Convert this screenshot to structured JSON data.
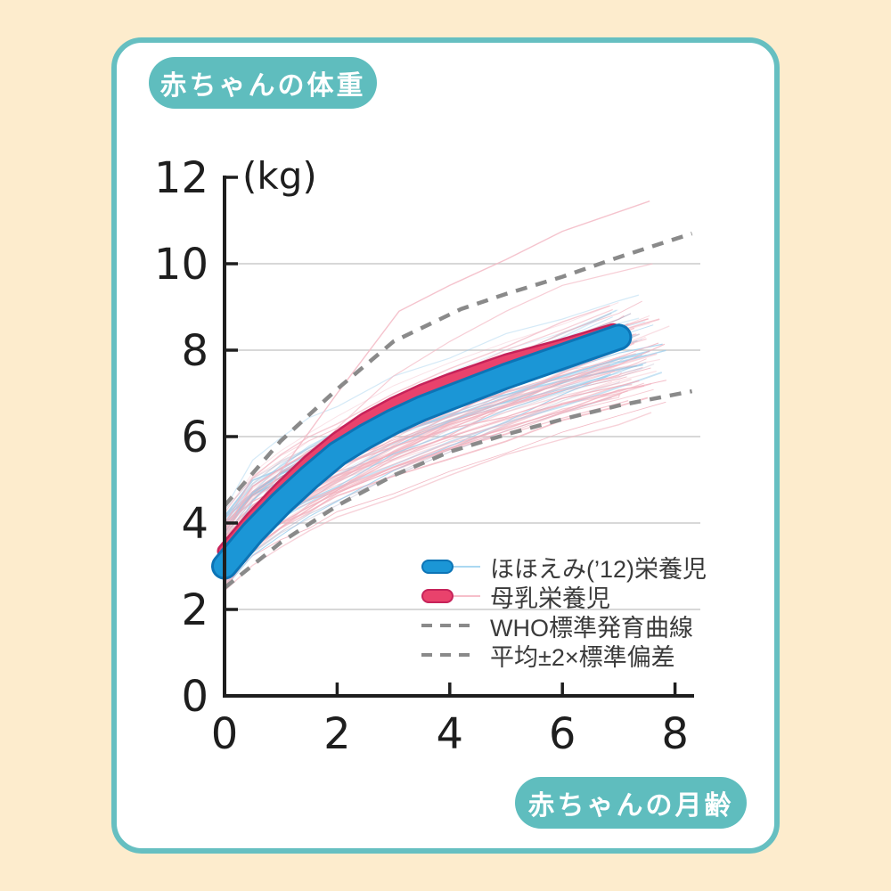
{
  "page": {
    "background_color": "#FDECCD",
    "card_border_color": "#66BFC1",
    "badge_color": "#5FBDBE"
  },
  "badges": {
    "top": "赤ちゃんの体重",
    "bottom": "赤ちゃんの月齢"
  },
  "chart_data": {
    "type": "line",
    "title": "赤ちゃんの体重",
    "xlabel": "赤ちゃんの月齢",
    "ylabel": "(kg)",
    "unit_label": "(kg)",
    "xlim": [
      0,
      8.4
    ],
    "ylim": [
      0,
      12
    ],
    "x_ticks": [
      0,
      2,
      4,
      6,
      8
    ],
    "y_ticks": [
      0,
      2,
      4,
      6,
      8,
      10,
      12
    ],
    "grid_y": [
      2,
      4,
      6,
      8,
      10
    ],
    "series": [
      {
        "name": "ほほえみ(’12)栄養児",
        "color": "#1B96D6",
        "edge_color": "#0C74B6",
        "x": [
          0,
          0.5,
          1,
          1.5,
          2,
          2.5,
          3,
          3.5,
          4,
          5,
          6,
          7
        ],
        "y": [
          3.0,
          3.78,
          4.45,
          5.05,
          5.6,
          6.0,
          6.35,
          6.65,
          6.9,
          7.4,
          7.85,
          8.3
        ]
      },
      {
        "name": "母乳栄養児",
        "color": "#E9426C",
        "edge_color": "#C6235A",
        "x": [
          0,
          0.5,
          1,
          1.5,
          2,
          2.5,
          3,
          3.5,
          4,
          5,
          6,
          6.9
        ],
        "y": [
          3.35,
          4.12,
          4.8,
          5.42,
          5.95,
          6.4,
          6.75,
          7.05,
          7.3,
          7.75,
          8.1,
          8.45
        ]
      }
    ],
    "dashed_curves": [
      {
        "name": "平均+2×標準偏差(上限)",
        "x": [
          0,
          1,
          2,
          3,
          4.2,
          5,
          6,
          7,
          8.3
        ],
        "y": [
          4.4,
          5.9,
          7.1,
          8.2,
          8.95,
          9.3,
          9.7,
          10.15,
          10.7
        ]
      },
      {
        "name": "平均−2×標準偏差(下限)",
        "x": [
          0,
          1,
          2,
          3,
          4,
          5,
          6,
          7,
          8.3
        ],
        "y": [
          2.5,
          3.55,
          4.4,
          5.1,
          5.65,
          6.05,
          6.4,
          6.72,
          7.05
        ]
      }
    ],
    "dashed_color": "#8A8A8A",
    "grid_color": "#CBCBCB",
    "axis_color": "#1E1E1E",
    "legend": [
      {
        "label": "ほほえみ(’12)栄養児",
        "swatch": "pill-blue"
      },
      {
        "label": "母乳栄養児",
        "swatch": "pill-pink"
      },
      {
        "label": "WHO標準発育曲線",
        "swatch": "dash"
      },
      {
        "label": "平均±2×標準偏差",
        "swatch": "dash"
      }
    ],
    "individual_lines": {
      "seed": 42,
      "pink_count": 56,
      "blue_count": 22,
      "gray_count": 12,
      "pink_color": "#F1AFBC",
      "blue_color": "#9CCEEC",
      "gray_color": "#B5AFC4",
      "start_min": 2.4,
      "start_max": 4.35,
      "end_x_min": 6.8,
      "end_x_max": 7.9,
      "end_min": 6.4,
      "end_max": 9.9,
      "outliers": [
        {
          "color": "#F3B9C4",
          "width": 1.4,
          "opacity": 0.85,
          "x": [
            0,
            1,
            2,
            3.1,
            4,
            5,
            6,
            7.55
          ],
          "y": [
            3.3,
            5.2,
            7.0,
            8.9,
            9.5,
            10.1,
            10.75,
            11.45
          ]
        },
        {
          "color": "#F3B9C4",
          "width": 1.2,
          "opacity": 0.7,
          "x": [
            0,
            1,
            2,
            3,
            4,
            5,
            6,
            7.6
          ],
          "y": [
            3.0,
            4.6,
            6.2,
            7.4,
            8.2,
            8.9,
            9.5,
            10.0
          ]
        }
      ]
    }
  }
}
